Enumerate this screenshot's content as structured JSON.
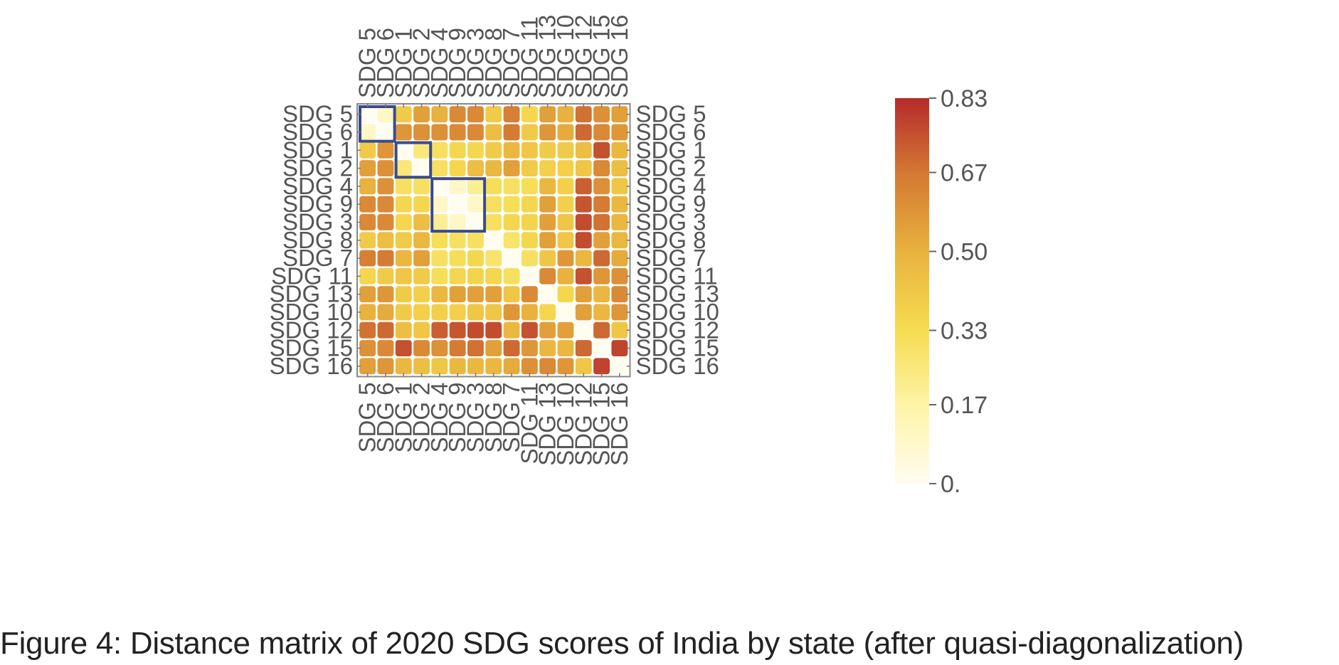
{
  "chart_data": {
    "type": "heatmap",
    "caption": "Figure 4: Distance matrix of 2020 SDG scores of India by state (after quasi-diagonalization)",
    "labels": [
      "SDG 5",
      "SDG 6",
      "SDG 1",
      "SDG 2",
      "SDG 4",
      "SDG 9",
      "SDG 3",
      "SDG 8",
      "SDG 7",
      "SDG 11",
      "SDG 13",
      "SDG 10",
      "SDG 12",
      "SDG 15",
      "SDG 16"
    ],
    "matrix": [
      [
        0.0,
        0.1,
        0.4,
        0.55,
        0.5,
        0.62,
        0.62,
        0.4,
        0.65,
        0.35,
        0.55,
        0.5,
        0.68,
        0.6,
        0.55
      ],
      [
        0.1,
        0.0,
        0.58,
        0.6,
        0.6,
        0.62,
        0.62,
        0.45,
        0.66,
        0.4,
        0.58,
        0.52,
        0.7,
        0.62,
        0.58
      ],
      [
        0.4,
        0.58,
        0.0,
        0.25,
        0.3,
        0.35,
        0.35,
        0.4,
        0.48,
        0.42,
        0.4,
        0.4,
        0.45,
        0.75,
        0.48
      ],
      [
        0.55,
        0.6,
        0.25,
        0.0,
        0.3,
        0.35,
        0.45,
        0.48,
        0.55,
        0.4,
        0.38,
        0.38,
        0.42,
        0.62,
        0.45
      ],
      [
        0.5,
        0.6,
        0.3,
        0.3,
        0.0,
        0.1,
        0.2,
        0.32,
        0.3,
        0.32,
        0.48,
        0.38,
        0.72,
        0.6,
        0.42
      ],
      [
        0.62,
        0.62,
        0.35,
        0.35,
        0.1,
        0.0,
        0.1,
        0.3,
        0.32,
        0.35,
        0.55,
        0.38,
        0.74,
        0.66,
        0.48
      ],
      [
        0.62,
        0.62,
        0.35,
        0.45,
        0.2,
        0.1,
        0.0,
        0.3,
        0.35,
        0.36,
        0.55,
        0.42,
        0.76,
        0.68,
        0.48
      ],
      [
        0.4,
        0.45,
        0.4,
        0.48,
        0.32,
        0.3,
        0.3,
        0.0,
        0.28,
        0.35,
        0.55,
        0.42,
        0.76,
        0.55,
        0.48
      ],
      [
        0.65,
        0.66,
        0.48,
        0.55,
        0.3,
        0.32,
        0.35,
        0.28,
        0.0,
        0.3,
        0.42,
        0.58,
        0.48,
        0.7,
        0.52
      ],
      [
        0.35,
        0.4,
        0.42,
        0.4,
        0.32,
        0.35,
        0.36,
        0.35,
        0.3,
        0.0,
        0.62,
        0.5,
        0.75,
        0.58,
        0.6
      ],
      [
        0.55,
        0.58,
        0.4,
        0.38,
        0.48,
        0.55,
        0.55,
        0.55,
        0.42,
        0.62,
        0.0,
        0.35,
        0.55,
        0.48,
        0.62
      ],
      [
        0.5,
        0.52,
        0.4,
        0.38,
        0.38,
        0.38,
        0.42,
        0.42,
        0.58,
        0.5,
        0.35,
        0.0,
        0.55,
        0.48,
        0.58
      ],
      [
        0.68,
        0.7,
        0.45,
        0.42,
        0.72,
        0.74,
        0.76,
        0.76,
        0.48,
        0.75,
        0.55,
        0.55,
        0.0,
        0.7,
        0.42
      ],
      [
        0.6,
        0.62,
        0.75,
        0.62,
        0.6,
        0.66,
        0.68,
        0.55,
        0.7,
        0.58,
        0.48,
        0.48,
        0.7,
        0.0,
        0.78
      ],
      [
        0.55,
        0.58,
        0.48,
        0.45,
        0.42,
        0.48,
        0.48,
        0.48,
        0.52,
        0.6,
        0.62,
        0.58,
        0.42,
        0.78,
        0.0
      ]
    ],
    "highlight_blocks": [
      [
        0,
        1
      ],
      [
        2,
        3
      ],
      [
        4,
        6
      ]
    ],
    "highlight_color": "#3a4b8c",
    "colorbar": {
      "min": 0,
      "max": 0.83,
      "tick_values": [
        0,
        0.17,
        0.33,
        0.5,
        0.67,
        0.83
      ],
      "tick_labels": [
        "0.",
        "0.17",
        "0.33",
        "0.50",
        "0.67",
        "0.83"
      ],
      "colors": [
        "#fffcf0",
        "#fff3a8",
        "#f5dc50",
        "#e9b23e",
        "#d47a34",
        "#b62b2b"
      ]
    },
    "grid": false,
    "legend_position": "right"
  }
}
